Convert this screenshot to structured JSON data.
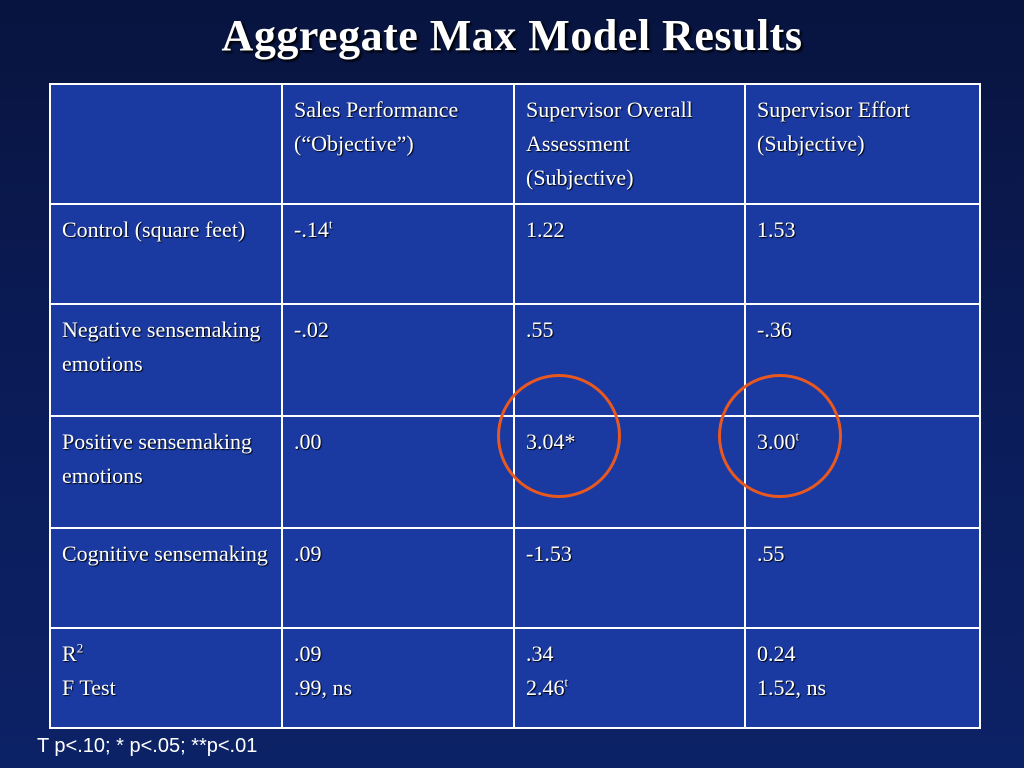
{
  "title": "Aggregate Max Model Results",
  "header": {
    "col1_line1": "Sales Performance",
    "col1_line2": "(“Objective”)",
    "col2_line1": "Supervisor Overall Assessment",
    "col2_line2": "(Subjective)",
    "col3_line1": "Supervisor Effort",
    "col3_line2": "(Subjective)"
  },
  "rows": [
    {
      "label": "Control (square feet)",
      "v1": "-.14",
      "v1_sup": "t",
      "v2": "1.22",
      "v3": "1.53"
    },
    {
      "label": "Negative sensemaking emotions",
      "v1": "-.02",
      "v2": ".55",
      "v3": "-.36"
    },
    {
      "label": "Positive sensemaking emotions",
      "v1": ".00",
      "v2": "3.04*",
      "v3": "3.00",
      "v3_sup": "t"
    },
    {
      "label": "Cognitive sensemaking",
      "v1": ".09",
      "v2": "-1.53",
      "v3": ".55"
    }
  ],
  "summary": {
    "r2_label": "R",
    "r2_sup": "2",
    "f_label": "F Test",
    "v1_r2": ".09",
    "v1_f": ".99, ns",
    "v2_r2": ".34",
    "v2_f": "2.46",
    "v2_f_sup": "t",
    "v3_r2": "0.24",
    "v3_f": "1.52, ns"
  },
  "footnote": "T p<.10; * p<.05; **p<.01",
  "colors": {
    "background": "#0b1c5a",
    "cell": "#1a3aa2",
    "highlight_circle": "#e8581f"
  }
}
